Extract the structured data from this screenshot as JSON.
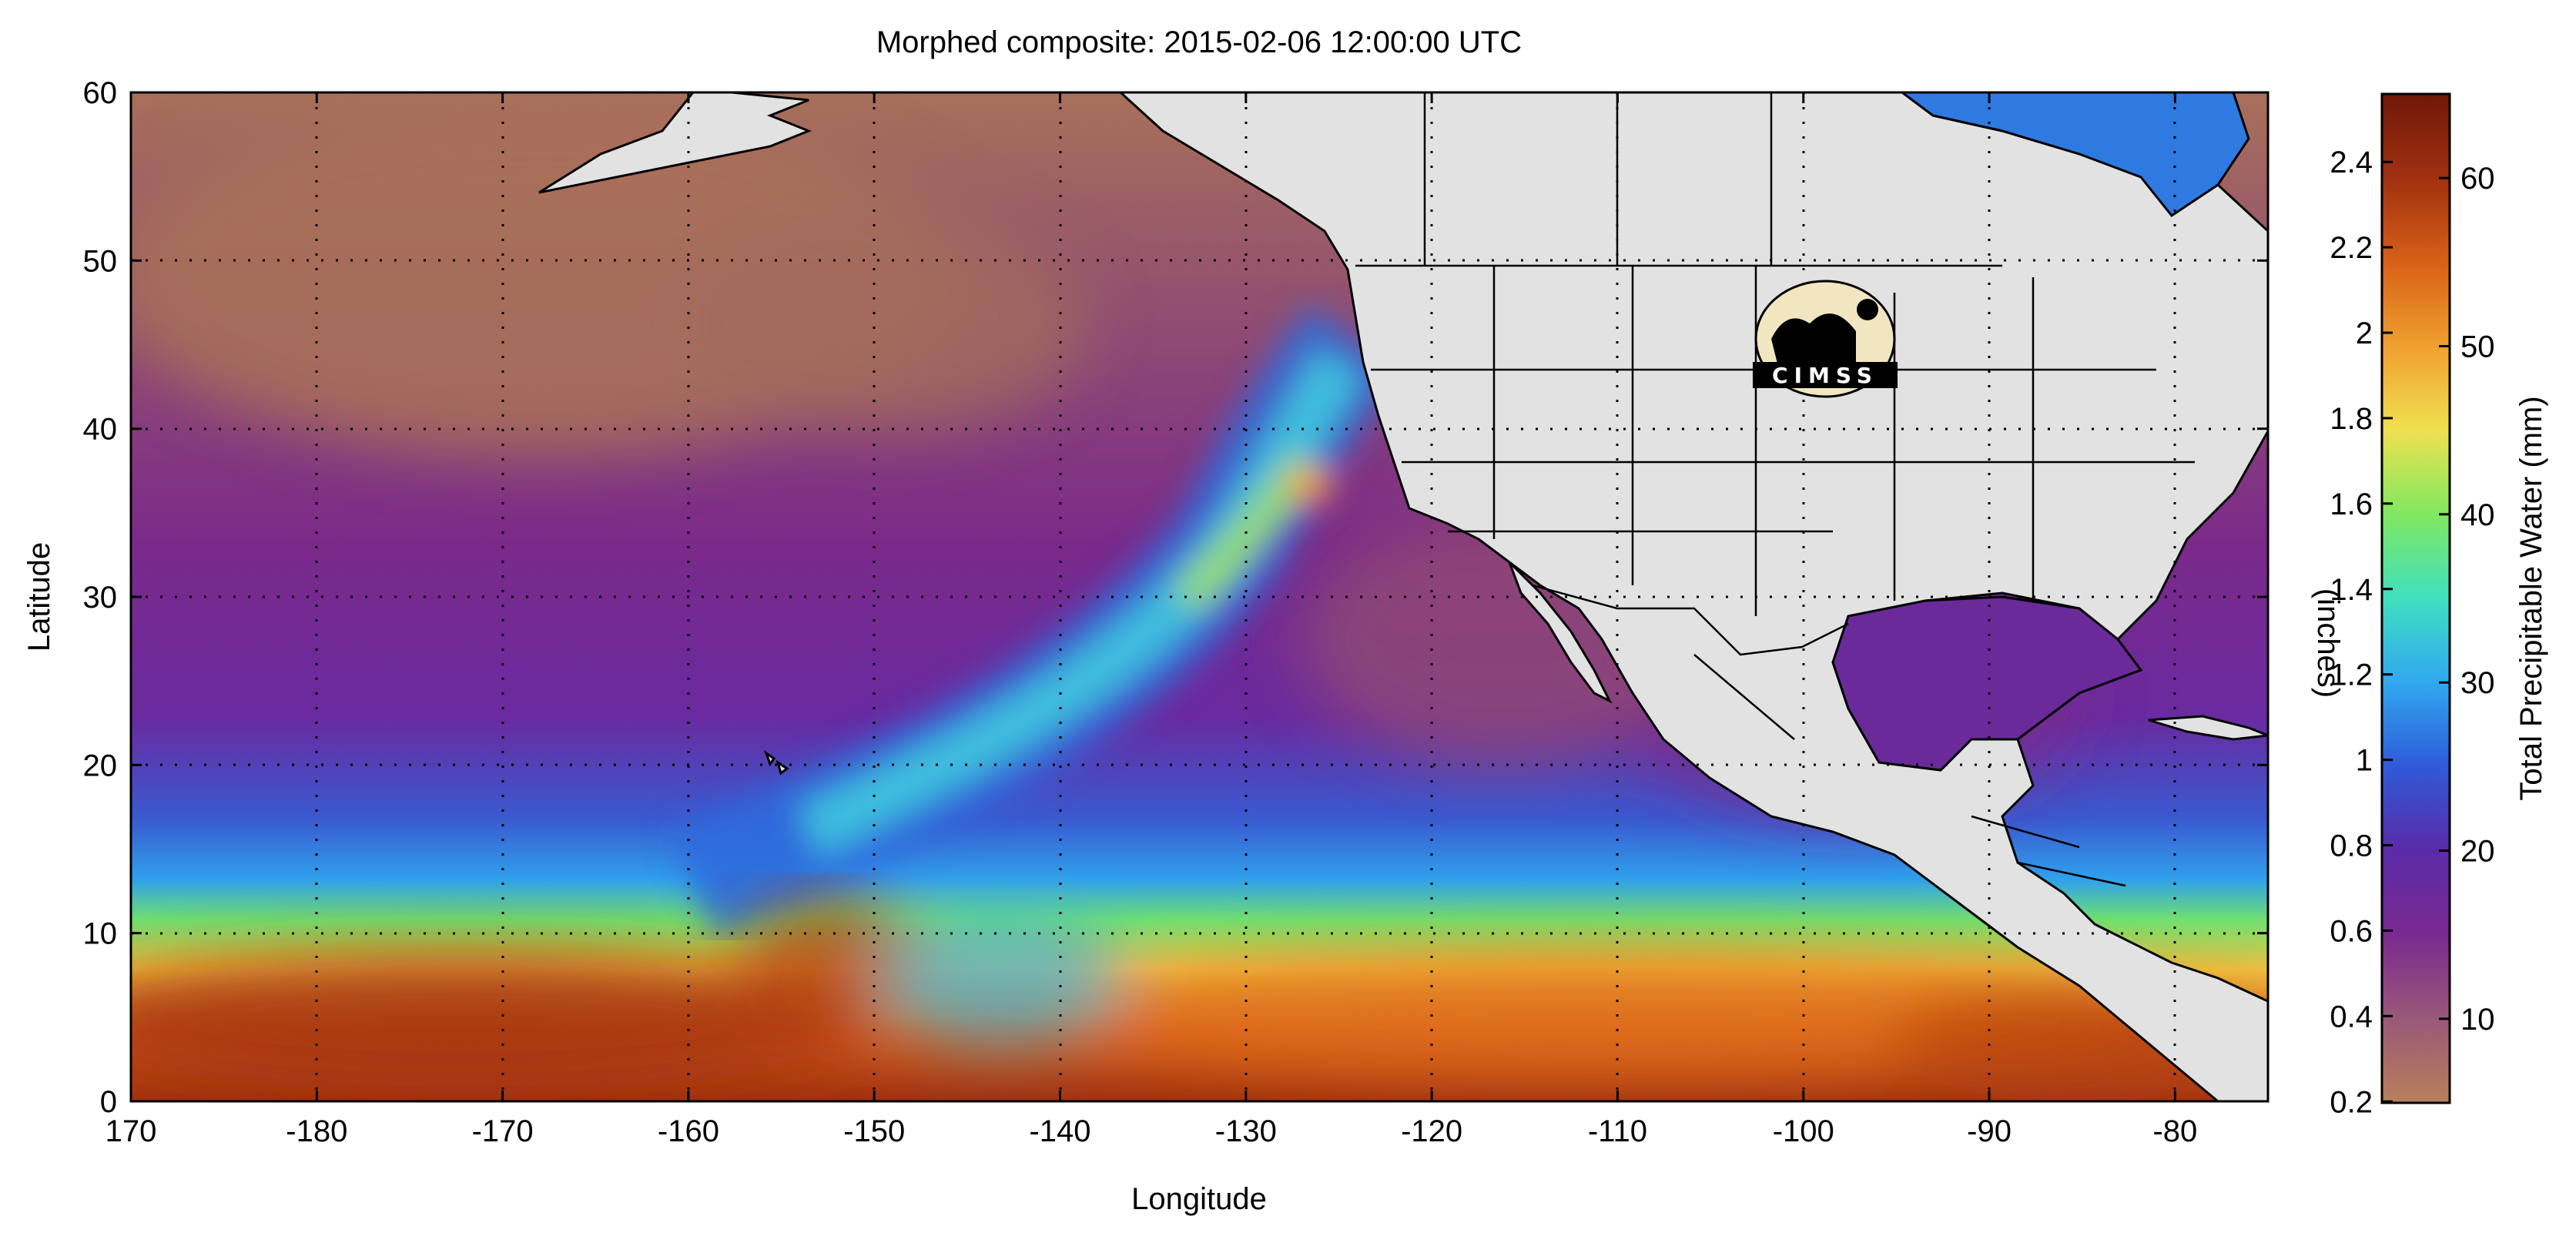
{
  "title": "Morphed composite: 2015-02-06 12:00:00 UTC",
  "map": {
    "xlabel": "Longitude",
    "ylabel": "Latitude",
    "lon_ticks": [
      "170",
      "-180",
      "-170",
      "-160",
      "-150",
      "-140",
      "-130",
      "-120",
      "-110",
      "-100",
      "-90",
      "-80"
    ],
    "lat_ticks": [
      "0",
      "10",
      "20",
      "30",
      "40",
      "50",
      "60"
    ],
    "lon_range": [
      170,
      285
    ],
    "lat_range": [
      0,
      60
    ],
    "grid": "dotted",
    "land_color": "#e2e2e2",
    "logo_text": "CIMSS"
  },
  "colorbar": {
    "mm_label": "Total Precipitable Water (mm)",
    "inch_label": "(inches)",
    "mm_ticks": [
      "10",
      "20",
      "30",
      "40",
      "50",
      "60"
    ],
    "mm_values": [
      10,
      20,
      30,
      40,
      50,
      60
    ],
    "inch_ticks": [
      "0.2",
      "0.4",
      "0.6",
      "0.8",
      "1",
      "1.2",
      "1.4",
      "1.6",
      "1.8",
      "2",
      "2.2",
      "2.4"
    ],
    "inch_values": [
      0.2,
      0.4,
      0.6,
      0.8,
      1.0,
      1.2,
      1.4,
      1.6,
      1.8,
      2.0,
      2.2,
      2.4
    ],
    "mm_range": [
      5,
      65
    ],
    "colors": [
      "#b8805a",
      "#9a5878",
      "#7a2a90",
      "#5a2aa8",
      "#2f5ad8",
      "#30a8f0",
      "#40e0c0",
      "#80e860",
      "#f0e050",
      "#f0a030",
      "#d86018",
      "#a03010",
      "#701808"
    ]
  }
}
